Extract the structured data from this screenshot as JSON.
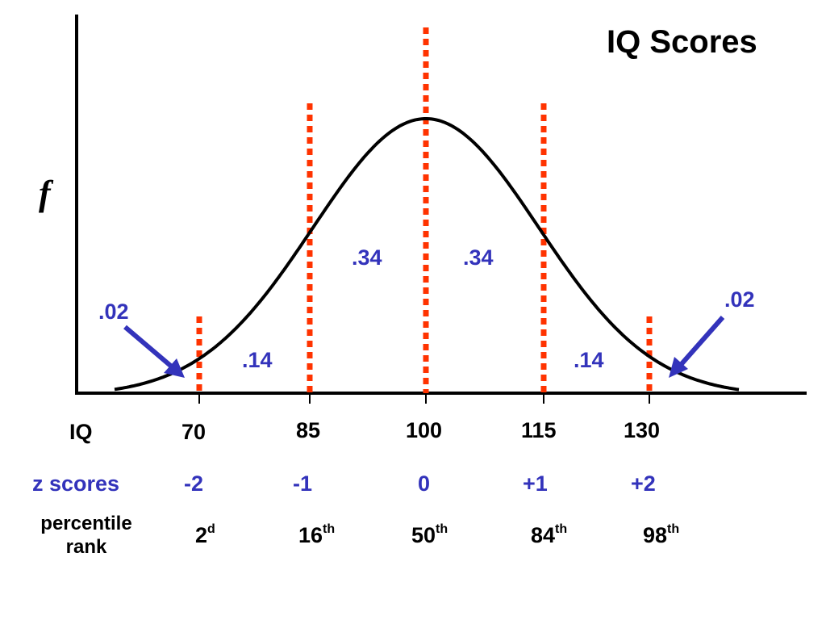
{
  "title": "IQ Scores",
  "y_axis_symbol": "f",
  "rows": {
    "iq_label": "IQ",
    "z_label": "z scores",
    "percentile_label_line1": "percentile",
    "percentile_label_line2": "rank"
  },
  "iq_values": [
    "70",
    "85",
    "100",
    "115",
    "130"
  ],
  "z_values": [
    "-2",
    "-1",
    "0",
    "+1",
    "+2"
  ],
  "percentile_values": [
    {
      "num": "2",
      "suffix": "d"
    },
    {
      "num": "16",
      "suffix": "th"
    },
    {
      "num": "50",
      "suffix": "th"
    },
    {
      "num": "84",
      "suffix": "th"
    },
    {
      "num": "98",
      "suffix": "th"
    }
  ],
  "area_labels": {
    "left_tail": ".02",
    "left_mid": ".14",
    "left_center": ".34",
    "right_center": ".34",
    "right_mid": ".14",
    "right_tail": ".02"
  },
  "colors": {
    "curve": "#000000",
    "axis": "#000000",
    "dotted_lines": "#ff3300",
    "area_text": "#3333bb",
    "arrows": "#3333bb"
  }
}
